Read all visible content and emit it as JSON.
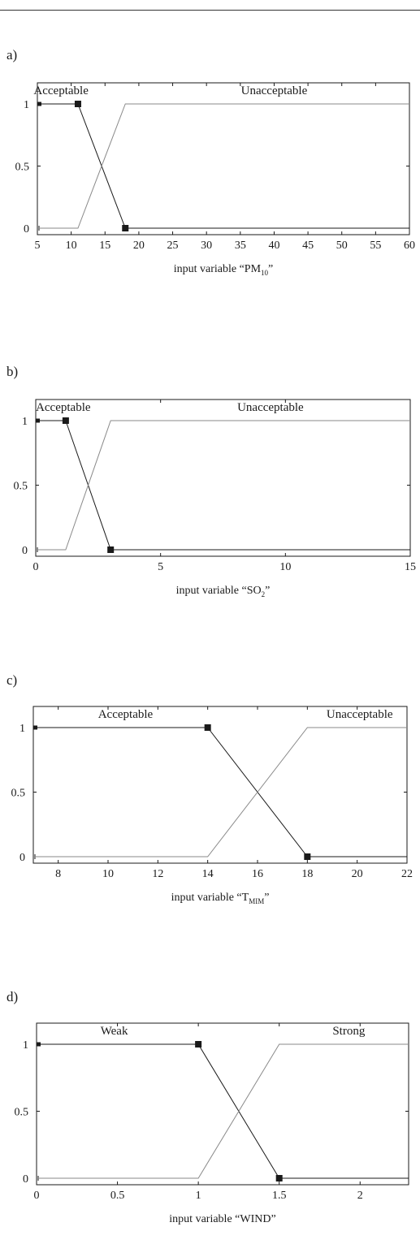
{
  "chart_data": [
    {
      "type": "line",
      "panel_label": "a)",
      "title": "",
      "xlabel": "input variable “PM",
      "xlabel_sub": "10",
      "xlabel_end": "”",
      "ylabel": "",
      "xlim": [
        5,
        60
      ],
      "ylim": [
        0,
        1
      ],
      "x_ticks": [
        "5",
        "10",
        "15",
        "20",
        "25",
        "30",
        "35",
        "40",
        "45",
        "50",
        "55",
        "60"
      ],
      "y_ticks": [
        "1",
        "0.5",
        "0"
      ],
      "series": [
        {
          "name": "Acceptable",
          "color": "#1a1a1a",
          "markers": true,
          "x": [
            5,
            11,
            18,
            60
          ],
          "y": [
            1,
            1,
            0,
            0
          ]
        },
        {
          "name": "Unacceptable",
          "color": "#8a8a8a",
          "markers": false,
          "x": [
            5,
            11,
            18,
            60
          ],
          "y": [
            0,
            0,
            1,
            1
          ]
        }
      ],
      "labels": [
        {
          "text": "Acceptable",
          "x": 8.5
        },
        {
          "text": "Unacceptable",
          "x": 40
        }
      ]
    },
    {
      "type": "line",
      "panel_label": "b)",
      "title": "",
      "xlabel": "input variable “SO",
      "xlabel_sub": "2",
      "xlabel_end": "”",
      "ylabel": "",
      "xlim": [
        0,
        15
      ],
      "ylim": [
        0,
        1
      ],
      "x_ticks": [
        "0",
        "5",
        "10",
        "15"
      ],
      "y_ticks": [
        "1",
        "0.5",
        "0"
      ],
      "series": [
        {
          "name": "Acceptable",
          "color": "#1a1a1a",
          "markers": true,
          "x": [
            0,
            1.2,
            3,
            15
          ],
          "y": [
            1,
            1,
            0,
            0
          ]
        },
        {
          "name": "Unacceptable",
          "color": "#8a8a8a",
          "markers": false,
          "x": [
            0,
            1.2,
            3,
            15
          ],
          "y": [
            0,
            0,
            1,
            1
          ]
        }
      ],
      "labels": [
        {
          "text": "Acceptable",
          "x": 1.1
        },
        {
          "text": "Unacceptable",
          "x": 9.4
        }
      ]
    },
    {
      "type": "line",
      "panel_label": "c)",
      "title": "",
      "xlabel": "input variable “T",
      "xlabel_sub": "MIM",
      "xlabel_end": "”",
      "ylabel": "",
      "xlim": [
        7,
        22
      ],
      "ylim": [
        0,
        1
      ],
      "x_ticks": [
        "8",
        "10",
        "12",
        "14",
        "16",
        "18",
        "20",
        "22"
      ],
      "y_ticks": [
        "1",
        "0.5",
        "0"
      ],
      "series": [
        {
          "name": "Acceptable",
          "color": "#1a1a1a",
          "markers": true,
          "x": [
            7,
            14,
            18,
            22
          ],
          "y": [
            1,
            1,
            0,
            0
          ]
        },
        {
          "name": "Unacceptable",
          "color": "#8a8a8a",
          "markers": false,
          "x": [
            7,
            14,
            18,
            22
          ],
          "y": [
            0,
            0,
            1,
            1
          ]
        }
      ],
      "labels": [
        {
          "text": "Acceptable",
          "x": 10.7
        },
        {
          "text": "Unacceptable",
          "x": 20.1
        }
      ]
    },
    {
      "type": "line",
      "panel_label": "d)",
      "title": "",
      "xlabel": "input variable “WIND”",
      "xlabel_sub": "",
      "xlabel_end": "",
      "ylabel": "",
      "xlim": [
        0,
        2.3
      ],
      "ylim": [
        0,
        1
      ],
      "x_ticks": [
        "0",
        "0.5",
        "1",
        "1.5",
        "2"
      ],
      "y_ticks": [
        "1",
        "0.5",
        "0"
      ],
      "series": [
        {
          "name": "Weak",
          "color": "#1a1a1a",
          "markers": true,
          "x": [
            0,
            1,
            1.5,
            2.3
          ],
          "y": [
            1,
            1,
            0,
            0
          ]
        },
        {
          "name": "Strong",
          "color": "#8a8a8a",
          "markers": false,
          "x": [
            0,
            1,
            1.5,
            2.3
          ],
          "y": [
            0,
            0,
            1,
            1
          ]
        }
      ],
      "labels": [
        {
          "text": "Weak",
          "x": 0.48
        },
        {
          "text": "Strong",
          "x": 1.93
        }
      ]
    }
  ]
}
